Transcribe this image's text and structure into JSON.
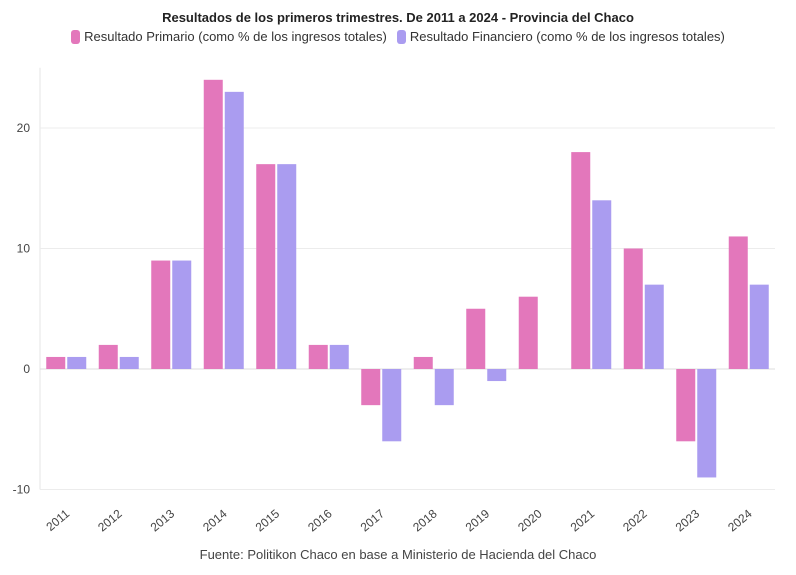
{
  "chart_data": {
    "type": "bar",
    "title": "Resultados de los primeros trimestres. De 2011 a 2024 - Provincia del Chaco",
    "categories": [
      "2011",
      "2012",
      "2013",
      "2014",
      "2015",
      "2016",
      "2017",
      "2018",
      "2019",
      "2020",
      "2021",
      "2022",
      "2023",
      "2024"
    ],
    "series": [
      {
        "name": "Resultado Primario (como % de los ingresos totales)",
        "color": "#e377bb",
        "values": [
          1,
          2,
          9,
          24,
          17,
          2,
          -3,
          1,
          5,
          6,
          18,
          10,
          -6,
          11
        ]
      },
      {
        "name": "Resultado Financiero (como % de los ingresos totales)",
        "color": "#aa9cf0",
        "values": [
          1,
          1,
          9,
          23,
          17,
          2,
          -6,
          -3,
          -1,
          0,
          14,
          7,
          -9,
          7
        ]
      }
    ],
    "yticks": [
      -10,
      0,
      10,
      20
    ],
    "ylim": [
      -10,
      25
    ],
    "grid": true,
    "legend_position": "top"
  },
  "source": "Fuente: Politikon Chaco en base a Ministerio de Hacienda del Chaco"
}
